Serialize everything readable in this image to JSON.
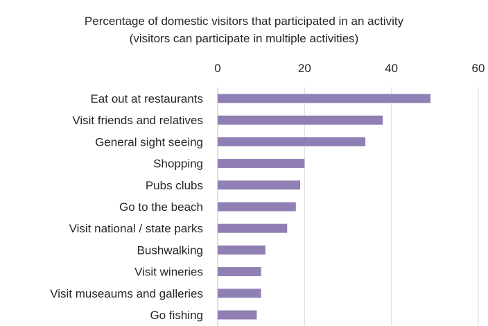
{
  "chart_data": {
    "type": "bar",
    "orientation": "horizontal",
    "title_lines": [
      "Percentage of domestic visitors that participated in an activity",
      "(visitors can participate in multiple activities)"
    ],
    "categories": [
      "Eat out at restaurants",
      "Visit friends and relatives",
      "General sight seeing",
      "Shopping",
      "Pubs clubs",
      "Go to the beach ",
      "Visit national / state parks",
      "Bushwalking",
      "Visit wineries",
      "Visit museaums and galleries",
      "Go fishing"
    ],
    "values": [
      49,
      38,
      34,
      20,
      19,
      18,
      16,
      11,
      10,
      10,
      9
    ],
    "xlim": [
      0,
      60
    ],
    "xticks": [
      0,
      20,
      40,
      60
    ],
    "xaxis_position": "top",
    "grid": true,
    "bar_color": "#8f7fb4",
    "grid_color": "#d9d9d9"
  }
}
